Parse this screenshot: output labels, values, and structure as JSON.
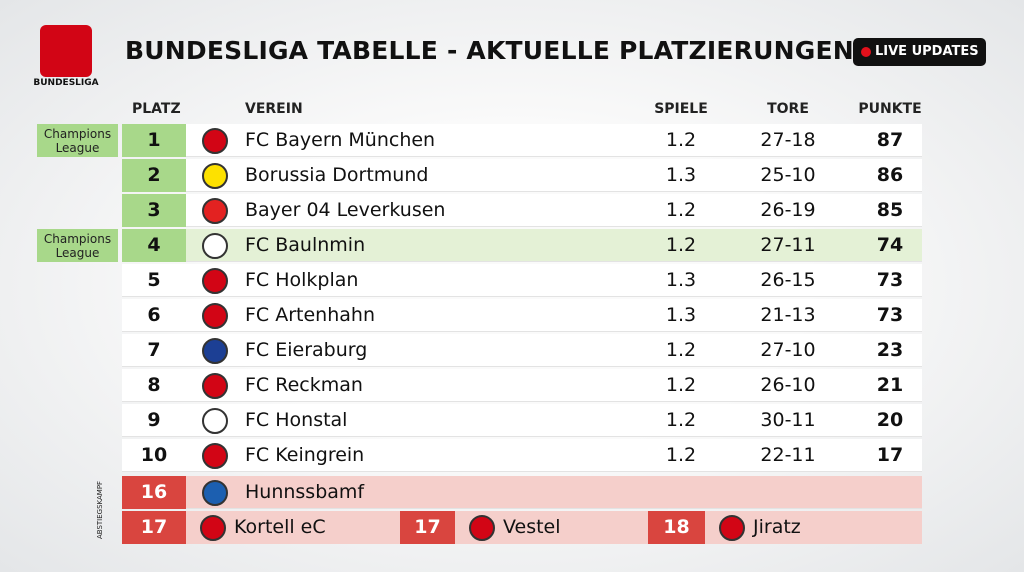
{
  "brand": "BUNDESLIGA",
  "title": "BUNDESLIGA TABELLE - AKTUELLE PLATZIERUNGEN",
  "live": "LIVE UPDATES",
  "columns": {
    "rank": "PLATZ",
    "club": "VEREIN",
    "played": "SPIELE",
    "goals": "TORE",
    "points": "PUNKTE"
  },
  "rows": [
    {
      "zone": "Champions League",
      "rank": 1,
      "club": "FC Bayern München",
      "played": 1.2,
      "goals": "27-18",
      "points": 87
    },
    {
      "rank": 2,
      "club": "Borussia Dortmund",
      "played": 1.3,
      "goals": "25-10",
      "points": 86
    },
    {
      "rank": 3,
      "club": "Bayer 04 Leverkusen",
      "played": 1.2,
      "goals": "26-19",
      "points": 85
    },
    {
      "zone": "Champions League",
      "rank": 4,
      "club": "FC Baulnmin",
      "played": 1.2,
      "goals": "27-11",
      "points": 74
    },
    {
      "rank": 5,
      "club": "FC Holkplan",
      "played": 1.3,
      "goals": "26-15",
      "points": 73
    },
    {
      "rank": 6,
      "club": "FC Artenhahn",
      "played": 1.3,
      "goals": "21-13",
      "points": 73
    },
    {
      "rank": 7,
      "club": "FC Eieraburg",
      "played": 1.2,
      "goals": "27-10",
      "points": 23
    },
    {
      "rank": 8,
      "club": "FC Reckman",
      "played": 1.2,
      "goals": "26-10",
      "points": 21
    },
    {
      "rank": 9,
      "club": "FC Honstal",
      "played": 1.2,
      "goals": "30-11",
      "points": 20
    },
    {
      "rank": 10,
      "club": "FC Keingrein",
      "played": 1.2,
      "goals": "22-11",
      "points": 17
    }
  ],
  "relegation": {
    "label": "ABSTIEGSKAMPF",
    "first": {
      "rank": 16,
      "club": "Hunnssbamf"
    },
    "second": [
      {
        "rank": 17,
        "club": "Kortell eC"
      },
      {
        "rank": 17,
        "club": "Vestel"
      },
      {
        "rank": 18,
        "club": "Jiratz"
      }
    ]
  }
}
